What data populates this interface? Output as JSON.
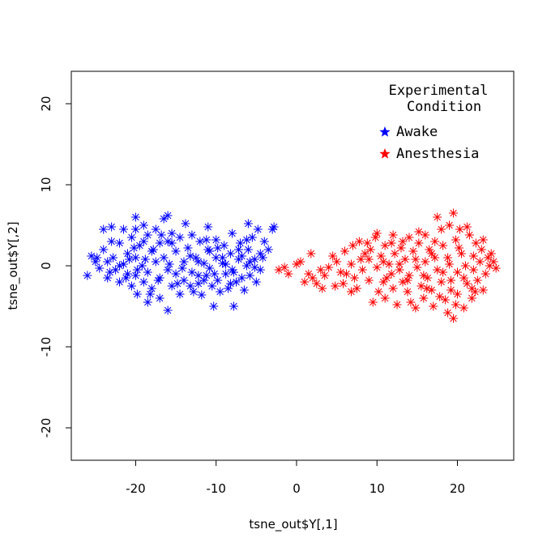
{
  "chart_data": {
    "type": "scatter",
    "xlabel": "tsne_out$Y[,1]",
    "ylabel": "tsne_out$Y[,2]",
    "xlim": [
      -28,
      27
    ],
    "ylim": [
      -24,
      24
    ],
    "x_ticks": [
      -20,
      -10,
      0,
      10,
      20
    ],
    "y_ticks": [
      -20,
      -10,
      0,
      10,
      20
    ],
    "x_tick_labels": [
      "-20",
      "-10",
      "0",
      "10",
      "20"
    ],
    "y_tick_labels": [
      "-20",
      "-10",
      "0",
      "10",
      "20"
    ],
    "grid": false,
    "legend": {
      "title_line1": "Experimental",
      "title_line2": "Condition",
      "placement": "top-right",
      "entries": [
        "Awake",
        "Anesthesia"
      ]
    },
    "series": [
      {
        "name": "Awake",
        "color": "#0000ff",
        "marker": "asterisk",
        "points": [
          [
            -26,
            -1.2
          ],
          [
            -25.5,
            1.2
          ],
          [
            -25,
            0.5
          ],
          [
            -24.5,
            -0.3
          ],
          [
            -24,
            2
          ],
          [
            -24,
            4.5
          ],
          [
            -23.5,
            0.5
          ],
          [
            -23.5,
            -1.5
          ],
          [
            -23,
            4.8
          ],
          [
            -23,
            3
          ],
          [
            -22.8,
            1
          ],
          [
            -22.5,
            -0.5
          ],
          [
            -22,
            2.8
          ],
          [
            -22,
            -2
          ],
          [
            -21.5,
            0.2
          ],
          [
            -21.5,
            4.5
          ],
          [
            -21,
            1.5
          ],
          [
            -21,
            -1
          ],
          [
            -20.5,
            3.5
          ],
          [
            -20.5,
            -2.5
          ],
          [
            -20,
            6
          ],
          [
            -20,
            4.5
          ],
          [
            -20,
            1
          ],
          [
            -20,
            -1.2
          ],
          [
            -19.8,
            -3.5
          ],
          [
            -19.5,
            2.5
          ],
          [
            -19.2,
            0
          ],
          [
            -19,
            5
          ],
          [
            -19,
            -2
          ],
          [
            -18.5,
            3.8
          ],
          [
            -18.5,
            -0.8
          ],
          [
            -18.5,
            -4.5
          ],
          [
            -18,
            1.8
          ],
          [
            -18,
            -2.8
          ],
          [
            -17.5,
            4.5
          ],
          [
            -17.5,
            0.5
          ],
          [
            -17,
            2.8
          ],
          [
            -17,
            -1.5
          ],
          [
            -17,
            -4
          ],
          [
            -16.5,
            5.8
          ],
          [
            -16.5,
            1
          ],
          [
            -16,
            6.2
          ],
          [
            -16,
            3
          ],
          [
            -16,
            -0.5
          ],
          [
            -16,
            -5.5
          ],
          [
            -15.5,
            -2.5
          ],
          [
            -15.5,
            4
          ],
          [
            -15,
            1.8
          ],
          [
            -15,
            -1
          ],
          [
            -14.5,
            3.5
          ],
          [
            -14.5,
            -3.5
          ],
          [
            -14,
            0.5
          ],
          [
            -14,
            -1.8
          ],
          [
            -13.8,
            5.2
          ],
          [
            -13.5,
            2.2
          ],
          [
            -13,
            3.8
          ],
          [
            -13,
            -0.8
          ],
          [
            -12.8,
            -3.2
          ],
          [
            -12.5,
            1
          ],
          [
            -12.2,
            -2.2
          ],
          [
            -12,
            3
          ],
          [
            -11.8,
            -3.6
          ],
          [
            -11.5,
            0.3
          ],
          [
            -11.2,
            -1.2
          ],
          [
            -11,
            4.8
          ],
          [
            -11,
            2
          ],
          [
            -10.8,
            -0.3
          ],
          [
            -10.5,
            -2.5
          ],
          [
            -10.3,
            -5
          ],
          [
            -10,
            3.2
          ],
          [
            -10,
            1
          ],
          [
            -9.8,
            -1.8
          ],
          [
            -9.5,
            -3.2
          ],
          [
            -9.2,
            0.3
          ],
          [
            -9,
            2.5
          ],
          [
            -8.8,
            -1
          ],
          [
            -8.5,
            -2.8
          ],
          [
            -8.2,
            1.5
          ],
          [
            -8,
            4
          ],
          [
            -8,
            -0.5
          ],
          [
            -7.8,
            -5
          ],
          [
            -7.5,
            -2
          ],
          [
            -7.2,
            0.8
          ],
          [
            -7,
            2.8
          ],
          [
            -6.8,
            -1.5
          ],
          [
            -6.5,
            -3
          ],
          [
            -6.2,
            0
          ],
          [
            -6,
            5.2
          ],
          [
            -6,
            2
          ],
          [
            -5.8,
            -1.2
          ],
          [
            -5.5,
            3.5
          ],
          [
            -5.2,
            0.8
          ],
          [
            -5,
            -2
          ],
          [
            -4.8,
            4.5
          ],
          [
            -4.5,
            1.5
          ],
          [
            -4.5,
            -0.5
          ],
          [
            -4,
            3
          ],
          [
            -3.5,
            2
          ],
          [
            -3,
            4.5
          ],
          [
            -2.8,
            4.8
          ],
          [
            -22,
            0
          ],
          [
            -20.8,
            0.8
          ],
          [
            -19,
            3
          ],
          [
            -18.2,
            -3.5
          ],
          [
            -17.2,
            -1.8
          ],
          [
            -15.8,
            0.2
          ],
          [
            -14.8,
            -2.2
          ],
          [
            -13.2,
            1.2
          ],
          [
            -12.2,
            0.5
          ],
          [
            -11.5,
            -1.8
          ],
          [
            -10.8,
            1.8
          ],
          [
            -9.8,
            2.2
          ],
          [
            -8.8,
            0.2
          ],
          [
            -7.8,
            -0.8
          ],
          [
            -6.8,
            1.2
          ],
          [
            -5.8,
            0.5
          ],
          [
            -24.8,
            1
          ],
          [
            -23.2,
            -0.8
          ],
          [
            -21.2,
            -1.5
          ],
          [
            -19.8,
            -0.5
          ],
          [
            -18.8,
            0.8
          ],
          [
            -17.8,
            2
          ],
          [
            -16.8,
            3.8
          ],
          [
            -14.2,
            -0.3
          ],
          [
            -13.2,
            -2.5
          ],
          [
            -12.2,
            -1.2
          ],
          [
            -11.2,
            3.2
          ],
          [
            -10.2,
            -1
          ],
          [
            -9.2,
            1
          ],
          [
            -8.2,
            -2.2
          ],
          [
            -7.2,
            2
          ],
          [
            -6.2,
            3.2
          ],
          [
            -5.2,
            -0.2
          ],
          [
            -4.2,
            1
          ],
          [
            -15.5,
            2.8
          ],
          [
            -20.2,
            2.2
          ]
        ]
      },
      {
        "name": "Anesthesia",
        "color": "#ff0000",
        "marker": "asterisk",
        "points": [
          [
            -2.2,
            -0.5
          ],
          [
            -1.5,
            -0.2
          ],
          [
            -1,
            -1
          ],
          [
            0,
            0.2
          ],
          [
            0.5,
            0.5
          ],
          [
            1,
            -2
          ],
          [
            1.5,
            -1
          ],
          [
            1.8,
            1.5
          ],
          [
            2,
            -1.5
          ],
          [
            2.5,
            -2.2
          ],
          [
            3,
            -0.5
          ],
          [
            3.2,
            -2.8
          ],
          [
            3.5,
            -1.2
          ],
          [
            4,
            -0.2
          ],
          [
            4.5,
            1.2
          ],
          [
            5,
            0.5
          ],
          [
            5.5,
            -0.8
          ],
          [
            5.8,
            -2.2
          ],
          [
            6,
            1.8
          ],
          [
            6.2,
            -1
          ],
          [
            6.8,
            0.2
          ],
          [
            7,
            2.5
          ],
          [
            7.2,
            -1.5
          ],
          [
            7.5,
            -2.8
          ],
          [
            8,
            0.8
          ],
          [
            8.2,
            -0.5
          ],
          [
            8.5,
            1.5
          ],
          [
            9,
            -1.8
          ],
          [
            9.2,
            2
          ],
          [
            9.5,
            -4.5
          ],
          [
            9.8,
            3.5
          ],
          [
            10,
            4
          ],
          [
            10,
            -0.2
          ],
          [
            10.5,
            1.2
          ],
          [
            10.8,
            -2
          ],
          [
            11,
            2.5
          ],
          [
            11,
            -4
          ],
          [
            11.5,
            0.2
          ],
          [
            11.8,
            -1
          ],
          [
            12,
            3.8
          ],
          [
            12,
            -2.8
          ],
          [
            12.2,
            1.5
          ],
          [
            12.5,
            -4.8
          ],
          [
            12.8,
            -0.5
          ],
          [
            13,
            2.2
          ],
          [
            13.2,
            -2
          ],
          [
            13.5,
            0.8
          ],
          [
            13.8,
            -3.2
          ],
          [
            14,
            3.5
          ],
          [
            14,
            -1.2
          ],
          [
            14.5,
            1.8
          ],
          [
            14.8,
            -5.2
          ],
          [
            15,
            -0.2
          ],
          [
            15.2,
            2.8
          ],
          [
            15.5,
            -2.5
          ],
          [
            15.8,
            -4
          ],
          [
            16,
            3.8
          ],
          [
            16,
            0.5
          ],
          [
            16.3,
            -1.5
          ],
          [
            16.5,
            2
          ],
          [
            16.8,
            -3
          ],
          [
            17,
            -5
          ],
          [
            17.2,
            1
          ],
          [
            17.5,
            6
          ],
          [
            17.5,
            -0.5
          ],
          [
            18,
            4.5
          ],
          [
            18,
            -2
          ],
          [
            18.2,
            2.5
          ],
          [
            18.5,
            -4.2
          ],
          [
            18.8,
            -5.8
          ],
          [
            19,
            5
          ],
          [
            19,
            0.2
          ],
          [
            19.2,
            -1.8
          ],
          [
            19.5,
            6.5
          ],
          [
            19.5,
            -6.5
          ],
          [
            19.8,
            3.2
          ],
          [
            20,
            -0.8
          ],
          [
            20,
            -3.5
          ],
          [
            20.3,
            4.5
          ],
          [
            20.5,
            1.5
          ],
          [
            20.8,
            -5.2
          ],
          [
            21,
            0
          ],
          [
            21.2,
            -2.2
          ],
          [
            21.5,
            3.8
          ],
          [
            21.8,
            -4
          ],
          [
            22,
            1.2
          ],
          [
            22,
            -0.5
          ],
          [
            22.3,
            2.8
          ],
          [
            22.5,
            -1.8
          ],
          [
            22.8,
            0.5
          ],
          [
            23,
            2
          ],
          [
            23.2,
            -3
          ],
          [
            23.5,
            -1
          ],
          [
            23.8,
            1
          ],
          [
            24,
            0
          ],
          [
            24.2,
            1.5
          ],
          [
            24.5,
            0.5
          ],
          [
            24.8,
            -0.3
          ],
          [
            8.8,
            2.8
          ],
          [
            10.2,
            -3.2
          ],
          [
            11.2,
            -1.5
          ],
          [
            13.2,
            3
          ],
          [
            14.2,
            -4.5
          ],
          [
            15.2,
            4.2
          ],
          [
            16.2,
            -2.8
          ],
          [
            17.2,
            3
          ],
          [
            18.2,
            -0.8
          ],
          [
            19.2,
            -3
          ],
          [
            20.2,
            2.2
          ],
          [
            21.2,
            4.8
          ],
          [
            22.2,
            -3.2
          ],
          [
            23.2,
            3.2
          ],
          [
            6.8,
            -3.2
          ],
          [
            7.8,
            3
          ],
          [
            9,
            0.8
          ],
          [
            12.8,
            0.2
          ],
          [
            14.8,
            0.8
          ],
          [
            16.8,
            1.5
          ],
          [
            18.8,
            1
          ],
          [
            20.8,
            -1.5
          ],
          [
            17.8,
            -3.8
          ],
          [
            19.8,
            -4.8
          ],
          [
            21.8,
            -2.8
          ],
          [
            15.8,
            -1.2
          ],
          [
            13.8,
            -1.8
          ],
          [
            11.8,
            2.8
          ],
          [
            10.8,
            0.5
          ],
          [
            4.8,
            -2.5
          ]
        ]
      }
    ]
  }
}
